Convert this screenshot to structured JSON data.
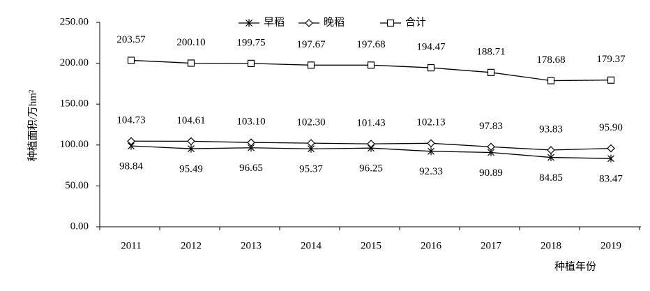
{
  "chart_data": {
    "type": "line",
    "y_label": "种植面积/万hm²",
    "x_label": "种植年份",
    "categories": [
      "2011",
      "2012",
      "2013",
      "2014",
      "2015",
      "2016",
      "2017",
      "2018",
      "2019"
    ],
    "series": [
      {
        "name": "早稻",
        "color": "#000000",
        "marker": "asterisk",
        "values": [
          98.84,
          95.49,
          96.65,
          95.37,
          96.25,
          92.33,
          90.89,
          84.85,
          83.47
        ],
        "value_labels": [
          "98.84",
          "95.49",
          "96.65",
          "95.37",
          "96.25",
          "92.33",
          "90.89",
          "84.85",
          "83.47"
        ]
      },
      {
        "name": "晚稻",
        "color": "#000000",
        "marker": "diamond",
        "values": [
          104.73,
          104.61,
          103.1,
          102.3,
          101.43,
          102.13,
          97.83,
          93.83,
          95.9
        ],
        "value_labels": [
          "104.73",
          "104.61",
          "103.10",
          "102.30",
          "101.43",
          "102.13",
          "97.83",
          "93.83",
          "95.90"
        ]
      },
      {
        "name": "合计",
        "color": "#000000",
        "marker": "square",
        "values": [
          203.57,
          200.1,
          199.75,
          197.67,
          197.68,
          194.47,
          188.71,
          178.68,
          179.37
        ],
        "value_labels": [
          "203.57",
          "200.10",
          "199.75",
          "197.67",
          "197.68",
          "194.47",
          "188.71",
          "178.68",
          "179.37"
        ]
      }
    ],
    "ylim": [
      0,
      250
    ],
    "yticks": [
      {
        "value": 0,
        "label": "0.00"
      },
      {
        "value": 50,
        "label": "50.00"
      },
      {
        "value": 100,
        "label": "100.00"
      },
      {
        "value": 150,
        "label": "150.00"
      },
      {
        "value": 200,
        "label": "200.00"
      },
      {
        "value": 250,
        "label": "250.00"
      }
    ],
    "grid": false,
    "legend": "top"
  }
}
